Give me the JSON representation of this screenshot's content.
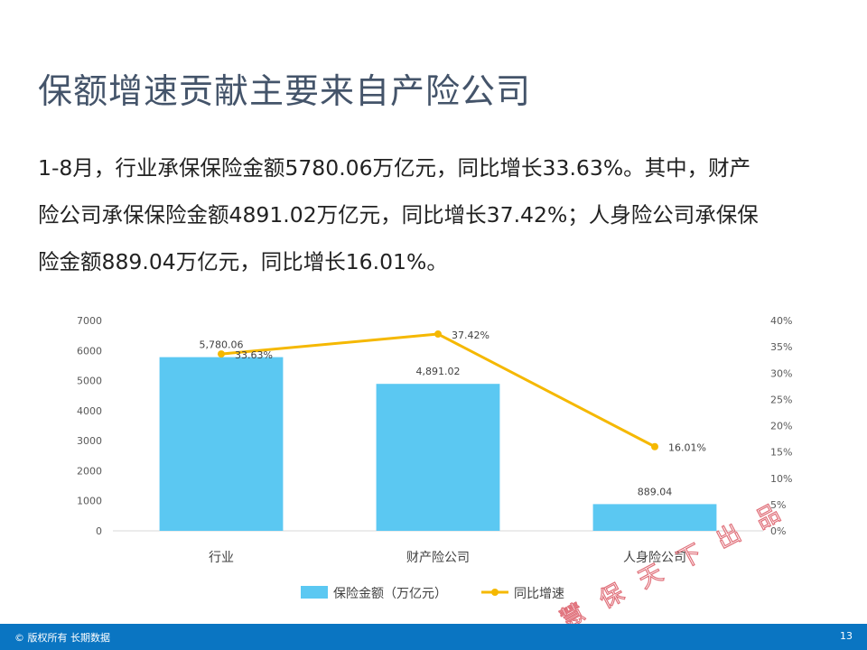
{
  "title": "保额增速贡献主要来自产险公司",
  "body_lines": [
    "1-8月，行业承保保险金额5780.06万亿元，同比增长33.63%。其中，财产",
    "险公司承保保险金额4891.02万亿元，同比增长37.42%；人身险公司承保保",
    "险金额889.04万亿元，同比增长16.01%。"
  ],
  "chart_data": {
    "type": "bar",
    "categories": [
      "行业",
      "财产险公司",
      "人身险公司"
    ],
    "series": [
      {
        "name": "保险金额（万亿元）",
        "type": "bar",
        "axis": "left",
        "values": [
          5780.06,
          4891.02,
          889.04
        ],
        "labels": [
          "5,780.06",
          "4,891.02",
          "889.04"
        ],
        "color": "#5bc8f2"
      },
      {
        "name": "同比增速",
        "type": "line",
        "axis": "right",
        "values": [
          33.63,
          37.42,
          16.01
        ],
        "labels": [
          "33.63%",
          "37.42%",
          "16.01%"
        ],
        "color": "#f5b800"
      }
    ],
    "y_left": {
      "min": 0,
      "max": 7000,
      "ticks": [
        "0",
        "1000",
        "2000",
        "3000",
        "4000",
        "5000",
        "6000",
        "7000"
      ]
    },
    "y_right": {
      "min": 0,
      "max": 40,
      "ticks": [
        "0%",
        "5%",
        "10%",
        "15%",
        "20%",
        "25%",
        "30%",
        "35%",
        "40%"
      ]
    },
    "legend_position": "bottom",
    "grid": false
  },
  "footer": {
    "copyright": "© 版权所有 长期数据",
    "page": "13"
  },
  "watermark": {
    "chars": [
      "慧",
      "保",
      "天",
      "下",
      "出",
      "品"
    ],
    "color": "#e0707a"
  }
}
